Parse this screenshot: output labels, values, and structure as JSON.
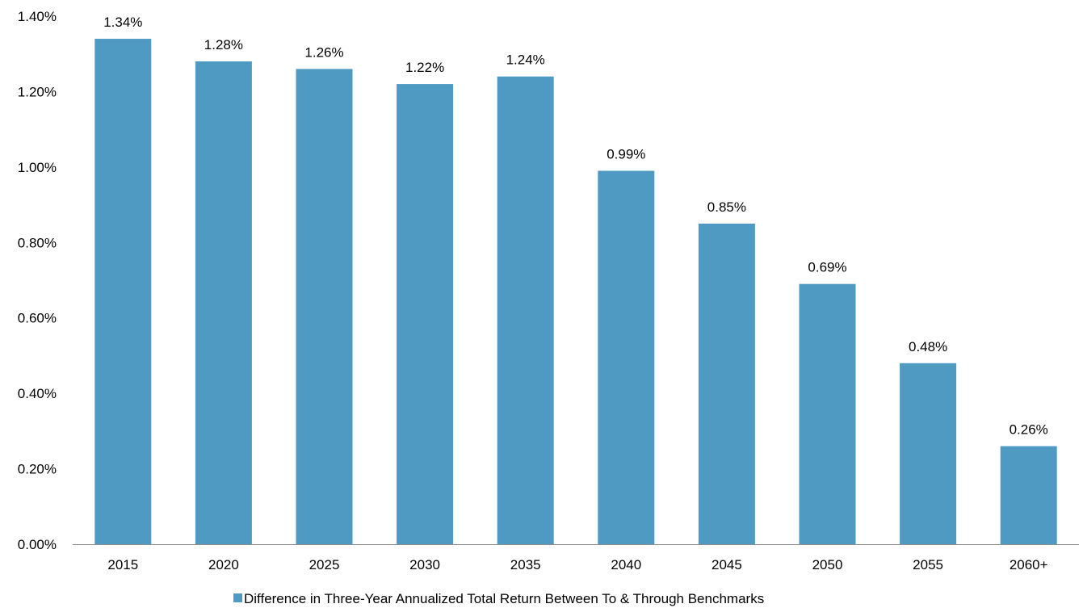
{
  "chart_data": {
    "type": "bar",
    "categories": [
      "2015",
      "2020",
      "2025",
      "2030",
      "2035",
      "2040",
      "2045",
      "2050",
      "2055",
      "2060+"
    ],
    "series": [
      {
        "name": "Difference in Three-Year Annualized Total Return Between To & Through Benchmarks",
        "values": [
          1.34,
          1.28,
          1.26,
          1.22,
          1.24,
          0.99,
          0.85,
          0.69,
          0.48,
          0.26
        ],
        "data_labels": [
          "1.34%",
          "1.28%",
          "1.26%",
          "1.22%",
          "1.24%",
          "0.99%",
          "0.85%",
          "0.69%",
          "0.48%",
          "0.26%"
        ],
        "color": "#4F9AC3"
      }
    ],
    "y_ticks": [
      0,
      0.2,
      0.4,
      0.6,
      0.8,
      1.0,
      1.2,
      1.4
    ],
    "y_tick_labels": [
      "0.00%",
      "0.20%",
      "0.40%",
      "0.60%",
      "0.80%",
      "1.00%",
      "1.20%",
      "1.40%"
    ],
    "ylim": [
      0,
      1.4
    ],
    "grid": false,
    "legend_position": "bottom-center",
    "title": "",
    "xlabel": "",
    "ylabel": ""
  }
}
